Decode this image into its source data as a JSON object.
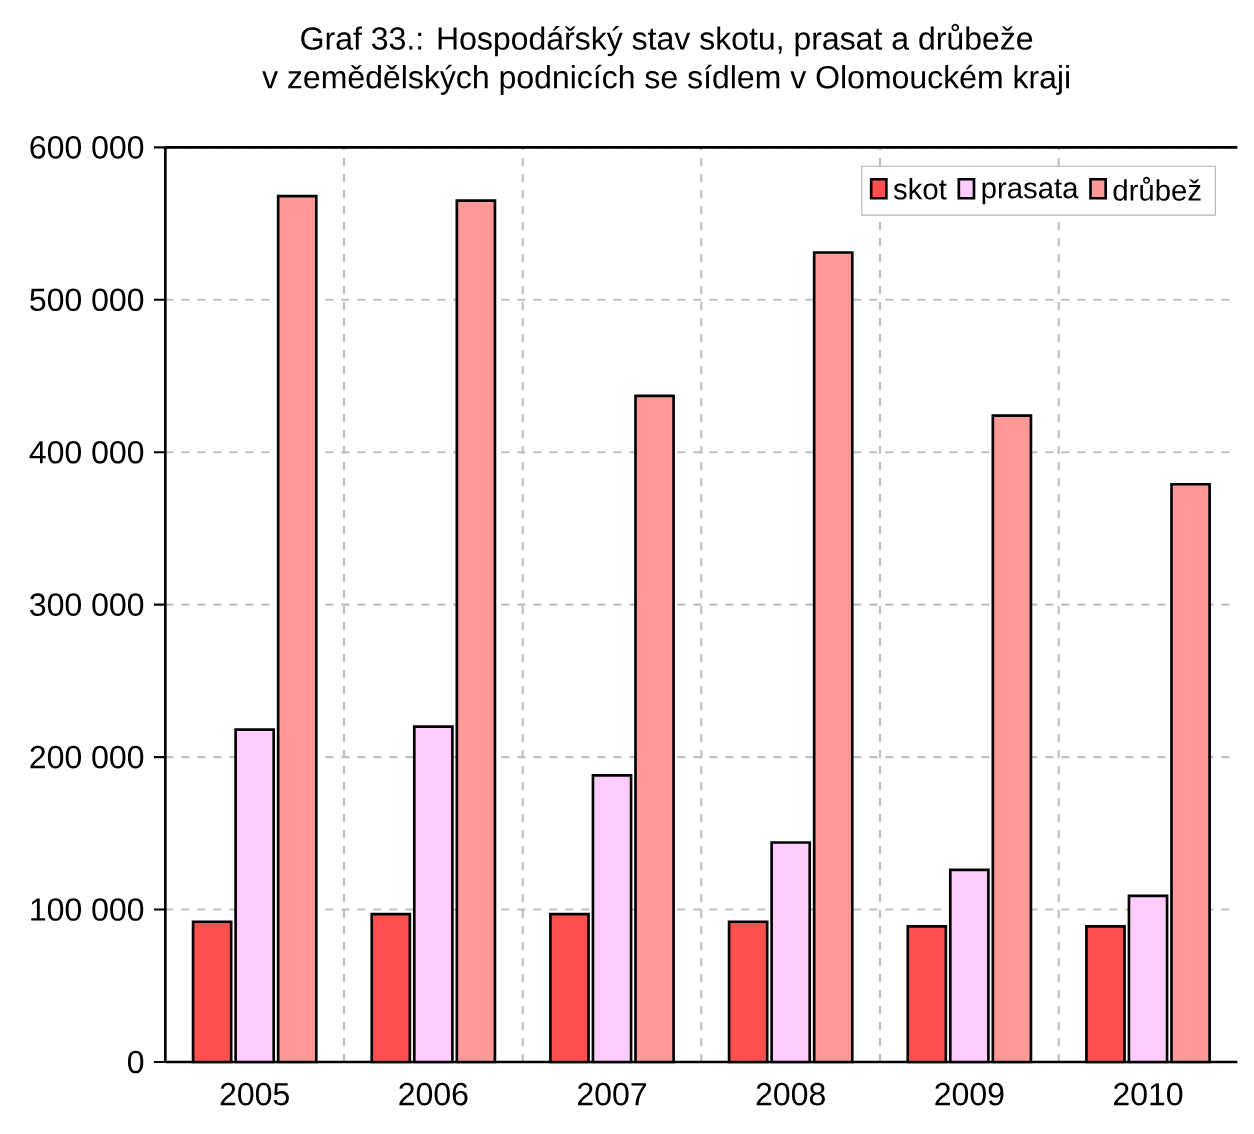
{
  "chart_data": {
    "type": "bar",
    "title": "Graf 33.: Hospodářský stav skotu, prasat a drůbeže\nv zemědělských podnicích se sídlem v Olomouckém kraji",
    "categories": [
      "2005",
      "2006",
      "2007",
      "2008",
      "2009",
      "2010"
    ],
    "series": [
      {
        "name": "skot",
        "color": "#ff5050",
        "values": [
          92000,
          97000,
          97000,
          92000,
          89000,
          89000
        ]
      },
      {
        "name": "prasata",
        "color": "#ffccff",
        "values": [
          218000,
          220000,
          188000,
          144000,
          126000,
          109000
        ]
      },
      {
        "name": "drůbež",
        "color": "#ff9999",
        "values": [
          568000,
          565000,
          437000,
          531000,
          424000,
          379000
        ]
      }
    ],
    "ylim": [
      0,
      600000
    ],
    "yticks": [
      {
        "value": 0,
        "label": "0"
      },
      {
        "value": 100000,
        "label": "100 000"
      },
      {
        "value": 200000,
        "label": "200 000"
      },
      {
        "value": 300000,
        "label": "300 000"
      },
      {
        "value": 400000,
        "label": "400 000"
      },
      {
        "value": 500000,
        "label": "500 000"
      },
      {
        "value": 600000,
        "label": "600 000"
      }
    ],
    "grid": true,
    "legend": "top right"
  }
}
